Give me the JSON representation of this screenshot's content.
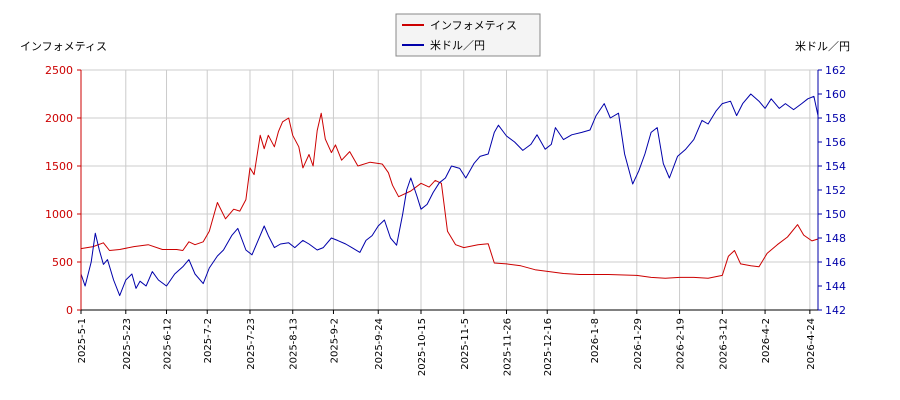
{
  "chart_data": {
    "type": "line",
    "left_axis_label": "インフォメティス",
    "right_axis_label": "米ドル／円",
    "legend_position": "top-center",
    "grid": true,
    "x_range": [
      "2025-05-01",
      "2026-04-28"
    ],
    "x_tick_labels": [
      "2025-5-1",
      "2025-5-23",
      "2025-6-12",
      "2025-7-2",
      "2025-7-23",
      "2025-8-13",
      "2025-9-2",
      "2025-9-24",
      "2025-10-15",
      "2025-11-5",
      "2025-11-26",
      "2025-12-16",
      "2026-1-8",
      "2026-1-29",
      "2026-2-19",
      "2026-3-12",
      "2026-4-2",
      "2026-4-24"
    ],
    "y_left": {
      "range": [
        0,
        2500
      ],
      "ticks": [
        0,
        500,
        1000,
        1500,
        2000,
        2500
      ],
      "color": "#cc0000"
    },
    "y_right": {
      "range": [
        142,
        162
      ],
      "ticks": [
        142,
        144,
        146,
        148,
        150,
        152,
        154,
        156,
        158,
        160,
        162
      ],
      "color": "#0000aa"
    },
    "series": [
      {
        "name": "インフォメティス",
        "axis": "left",
        "color": "#cc0000",
        "points": [
          [
            "2025-05-01",
            640
          ],
          [
            "2025-05-07",
            660
          ],
          [
            "2025-05-12",
            700
          ],
          [
            "2025-05-15",
            620
          ],
          [
            "2025-05-20",
            630
          ],
          [
            "2025-05-27",
            660
          ],
          [
            "2025-06-03",
            680
          ],
          [
            "2025-06-10",
            630
          ],
          [
            "2025-06-17",
            630
          ],
          [
            "2025-06-20",
            620
          ],
          [
            "2025-06-23",
            710
          ],
          [
            "2025-06-26",
            680
          ],
          [
            "2025-06-30",
            710
          ],
          [
            "2025-07-03",
            820
          ],
          [
            "2025-07-07",
            1120
          ],
          [
            "2025-07-11",
            950
          ],
          [
            "2025-07-15",
            1050
          ],
          [
            "2025-07-18",
            1030
          ],
          [
            "2025-07-21",
            1150
          ],
          [
            "2025-07-23",
            1480
          ],
          [
            "2025-07-25",
            1410
          ],
          [
            "2025-07-28",
            1820
          ],
          [
            "2025-07-30",
            1680
          ],
          [
            "2025-08-01",
            1820
          ],
          [
            "2025-08-04",
            1700
          ],
          [
            "2025-08-06",
            1860
          ],
          [
            "2025-08-08",
            1960
          ],
          [
            "2025-08-11",
            2000
          ],
          [
            "2025-08-13",
            1820
          ],
          [
            "2025-08-16",
            1700
          ],
          [
            "2025-08-18",
            1480
          ],
          [
            "2025-08-21",
            1620
          ],
          [
            "2025-08-23",
            1500
          ],
          [
            "2025-08-25",
            1870
          ],
          [
            "2025-08-27",
            2050
          ],
          [
            "2025-08-29",
            1780
          ],
          [
            "2025-09-01",
            1640
          ],
          [
            "2025-09-03",
            1720
          ],
          [
            "2025-09-06",
            1560
          ],
          [
            "2025-09-10",
            1650
          ],
          [
            "2025-09-14",
            1500
          ],
          [
            "2025-09-20",
            1540
          ],
          [
            "2025-09-26",
            1520
          ],
          [
            "2025-09-29",
            1430
          ],
          [
            "2025-10-01",
            1300
          ],
          [
            "2025-10-04",
            1180
          ],
          [
            "2025-10-10",
            1240
          ],
          [
            "2025-10-15",
            1320
          ],
          [
            "2025-10-19",
            1280
          ],
          [
            "2025-10-22",
            1350
          ],
          [
            "2025-10-25",
            1320
          ],
          [
            "2025-10-28",
            820
          ],
          [
            "2025-11-01",
            680
          ],
          [
            "2025-11-05",
            650
          ],
          [
            "2025-11-12",
            680
          ],
          [
            "2025-11-17",
            690
          ],
          [
            "2025-11-20",
            490
          ],
          [
            "2025-11-26",
            480
          ],
          [
            "2025-12-03",
            460
          ],
          [
            "2025-12-10",
            420
          ],
          [
            "2025-12-17",
            400
          ],
          [
            "2025-12-24",
            380
          ],
          [
            "2026-01-01",
            370
          ],
          [
            "2026-01-15",
            370
          ],
          [
            "2026-01-29",
            360
          ],
          [
            "2026-02-05",
            340
          ],
          [
            "2026-02-12",
            330
          ],
          [
            "2026-02-19",
            340
          ],
          [
            "2026-02-26",
            340
          ],
          [
            "2026-03-05",
            330
          ],
          [
            "2026-03-12",
            360
          ],
          [
            "2026-03-15",
            560
          ],
          [
            "2026-03-18",
            620
          ],
          [
            "2026-03-21",
            480
          ],
          [
            "2026-03-26",
            460
          ],
          [
            "2026-03-30",
            450
          ],
          [
            "2026-04-03",
            590
          ],
          [
            "2026-04-08",
            680
          ],
          [
            "2026-04-13",
            760
          ],
          [
            "2026-04-18",
            890
          ],
          [
            "2026-04-21",
            780
          ],
          [
            "2026-04-25",
            720
          ],
          [
            "2026-04-28",
            740
          ]
        ]
      },
      {
        "name": "米ドル／円",
        "axis": "right",
        "color": "#0000aa",
        "points": [
          [
            "2025-05-01",
            145.0
          ],
          [
            "2025-05-03",
            144.0
          ],
          [
            "2025-05-06",
            146.0
          ],
          [
            "2025-05-08",
            148.4
          ],
          [
            "2025-05-10",
            147.0
          ],
          [
            "2025-05-12",
            145.8
          ],
          [
            "2025-05-14",
            146.2
          ],
          [
            "2025-05-17",
            144.5
          ],
          [
            "2025-05-20",
            143.2
          ],
          [
            "2025-05-23",
            144.5
          ],
          [
            "2025-05-26",
            145.0
          ],
          [
            "2025-05-28",
            143.8
          ],
          [
            "2025-05-30",
            144.4
          ],
          [
            "2025-06-02",
            144.0
          ],
          [
            "2025-06-05",
            145.2
          ],
          [
            "2025-06-08",
            144.5
          ],
          [
            "2025-06-12",
            144.0
          ],
          [
            "2025-06-16",
            145.0
          ],
          [
            "2025-06-20",
            145.6
          ],
          [
            "2025-06-23",
            146.2
          ],
          [
            "2025-06-26",
            145.0
          ],
          [
            "2025-06-30",
            144.2
          ],
          [
            "2025-07-03",
            145.5
          ],
          [
            "2025-07-07",
            146.5
          ],
          [
            "2025-07-10",
            147.0
          ],
          [
            "2025-07-14",
            148.2
          ],
          [
            "2025-07-17",
            148.8
          ],
          [
            "2025-07-21",
            147.0
          ],
          [
            "2025-07-24",
            146.6
          ],
          [
            "2025-07-27",
            147.8
          ],
          [
            "2025-07-30",
            149.0
          ],
          [
            "2025-08-01",
            148.2
          ],
          [
            "2025-08-04",
            147.2
          ],
          [
            "2025-08-07",
            147.5
          ],
          [
            "2025-08-11",
            147.6
          ],
          [
            "2025-08-14",
            147.2
          ],
          [
            "2025-08-18",
            147.8
          ],
          [
            "2025-08-21",
            147.5
          ],
          [
            "2025-08-25",
            147.0
          ],
          [
            "2025-08-28",
            147.2
          ],
          [
            "2025-09-01",
            148.0
          ],
          [
            "2025-09-04",
            147.8
          ],
          [
            "2025-09-08",
            147.5
          ],
          [
            "2025-09-11",
            147.2
          ],
          [
            "2025-09-15",
            146.8
          ],
          [
            "2025-09-18",
            147.8
          ],
          [
            "2025-09-21",
            148.2
          ],
          [
            "2025-09-24",
            149.0
          ],
          [
            "2025-09-27",
            149.5
          ],
          [
            "2025-09-30",
            148.0
          ],
          [
            "2025-10-03",
            147.4
          ],
          [
            "2025-10-06",
            150.0
          ],
          [
            "2025-10-08",
            152.0
          ],
          [
            "2025-10-10",
            153.0
          ],
          [
            "2025-10-13",
            151.5
          ],
          [
            "2025-10-15",
            150.4
          ],
          [
            "2025-10-18",
            150.8
          ],
          [
            "2025-10-21",
            151.8
          ],
          [
            "2025-10-24",
            152.6
          ],
          [
            "2025-10-27",
            153.0
          ],
          [
            "2025-10-30",
            154.0
          ],
          [
            "2025-11-03",
            153.8
          ],
          [
            "2025-11-06",
            153.0
          ],
          [
            "2025-11-10",
            154.2
          ],
          [
            "2025-11-13",
            154.8
          ],
          [
            "2025-11-17",
            155.0
          ],
          [
            "2025-11-20",
            156.8
          ],
          [
            "2025-11-22",
            157.4
          ],
          [
            "2025-11-26",
            156.5
          ],
          [
            "2025-11-30",
            156.0
          ],
          [
            "2025-12-04",
            155.3
          ],
          [
            "2025-12-08",
            155.8
          ],
          [
            "2025-12-11",
            156.6
          ],
          [
            "2025-12-15",
            155.4
          ],
          [
            "2025-12-18",
            155.8
          ],
          [
            "2025-12-20",
            157.2
          ],
          [
            "2025-12-24",
            156.2
          ],
          [
            "2025-12-28",
            156.6
          ],
          [
            "2026-01-02",
            156.8
          ],
          [
            "2026-01-06",
            157.0
          ],
          [
            "2026-01-09",
            158.2
          ],
          [
            "2026-01-13",
            159.2
          ],
          [
            "2026-01-16",
            158.0
          ],
          [
            "2026-01-20",
            158.4
          ],
          [
            "2026-01-23",
            155.0
          ],
          [
            "2026-01-27",
            152.5
          ],
          [
            "2026-01-30",
            153.6
          ],
          [
            "2026-02-02",
            155.0
          ],
          [
            "2026-02-05",
            156.8
          ],
          [
            "2026-02-08",
            157.2
          ],
          [
            "2026-02-11",
            154.2
          ],
          [
            "2026-02-14",
            153.0
          ],
          [
            "2026-02-18",
            154.8
          ],
          [
            "2026-02-22",
            155.4
          ],
          [
            "2026-02-26",
            156.2
          ],
          [
            "2026-03-02",
            157.8
          ],
          [
            "2026-03-05",
            157.5
          ],
          [
            "2026-03-09",
            158.6
          ],
          [
            "2026-03-12",
            159.2
          ],
          [
            "2026-03-16",
            159.4
          ],
          [
            "2026-03-19",
            158.2
          ],
          [
            "2026-03-22",
            159.2
          ],
          [
            "2026-03-26",
            160.0
          ],
          [
            "2026-03-30",
            159.4
          ],
          [
            "2026-04-02",
            158.8
          ],
          [
            "2026-04-05",
            159.6
          ],
          [
            "2026-04-09",
            158.8
          ],
          [
            "2026-04-12",
            159.2
          ],
          [
            "2026-04-16",
            158.7
          ],
          [
            "2026-04-20",
            159.2
          ],
          [
            "2026-04-23",
            159.6
          ],
          [
            "2026-04-26",
            159.8
          ],
          [
            "2026-04-28",
            158.2
          ]
        ]
      }
    ]
  }
}
